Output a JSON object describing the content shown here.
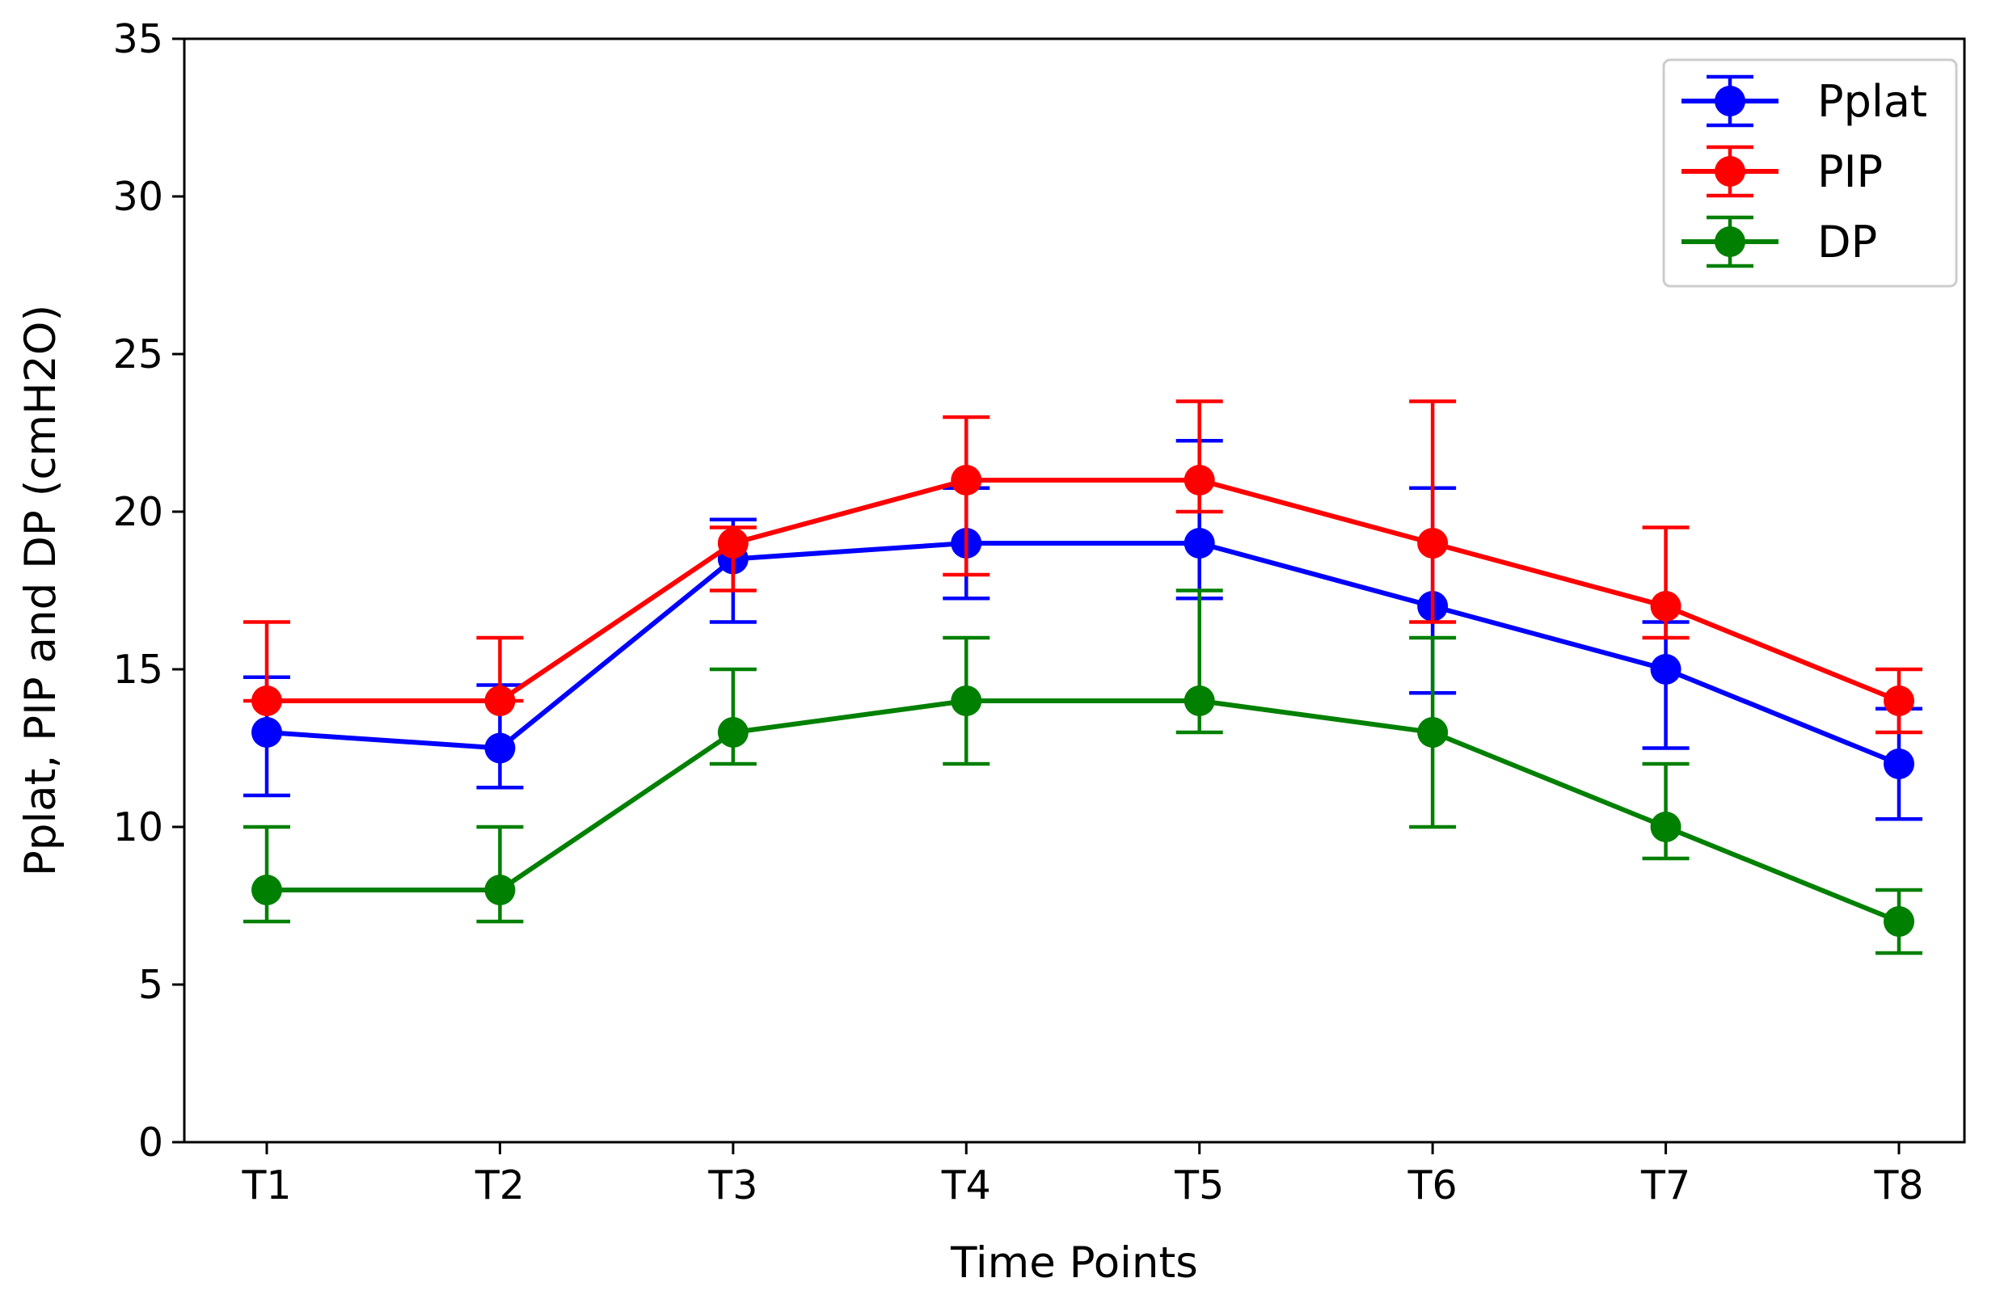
{
  "chart_data": {
    "type": "line",
    "title": "",
    "xlabel": "Time Points",
    "ylabel": "Pplat, PIP and DP (cmH2O)",
    "categories": [
      "T1",
      "T2",
      "T3",
      "T4",
      "T5",
      "T6",
      "T7",
      "T8"
    ],
    "ylim": [
      0,
      35
    ],
    "yticks": [
      0,
      5,
      10,
      15,
      20,
      25,
      30,
      35
    ],
    "ytick_labels": [
      "0",
      "5",
      "10",
      "15",
      "20",
      "25",
      "30",
      "35"
    ],
    "grid": false,
    "legend_position": "top-right",
    "series": [
      {
        "name": "Pplat",
        "color": "#0000ff",
        "values": [
          13,
          12.5,
          18.5,
          19,
          19,
          17,
          15,
          12
        ],
        "err_low": [
          11,
          11.25,
          16.5,
          17.25,
          17.25,
          14.25,
          12.5,
          10.25
        ],
        "err_high": [
          14.75,
          14.5,
          19.75,
          20.75,
          22.25,
          20.75,
          16.5,
          13.75
        ]
      },
      {
        "name": "PIP",
        "color": "#ff0000",
        "values": [
          14,
          14,
          19,
          21,
          21,
          19,
          17,
          14
        ],
        "err_low": [
          14,
          14,
          17.5,
          18,
          20,
          16.5,
          16,
          13
        ],
        "err_high": [
          16.5,
          16,
          19.5,
          23,
          23.5,
          23.5,
          19.5,
          15
        ]
      },
      {
        "name": "DP",
        "color": "#008000",
        "values": [
          8,
          8,
          13,
          14,
          14,
          13,
          10,
          7
        ],
        "err_low": [
          7,
          7,
          12,
          12,
          13,
          10,
          9,
          6
        ],
        "err_high": [
          10,
          10,
          15,
          16,
          17.5,
          16,
          12,
          8
        ]
      }
    ]
  }
}
